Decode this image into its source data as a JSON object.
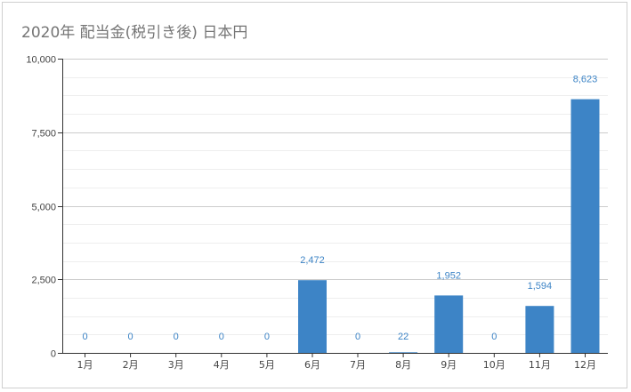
{
  "chart_data": {
    "type": "bar",
    "title": "2020年 配当金(税引き後) 日本円",
    "xlabel": "",
    "ylabel": "",
    "categories": [
      "1月",
      "2月",
      "3月",
      "4月",
      "5月",
      "6月",
      "7月",
      "8月",
      "9月",
      "10月",
      "11月",
      "12月"
    ],
    "values": [
      0,
      0,
      0,
      0,
      0,
      2472,
      0,
      22,
      1952,
      0,
      1594,
      8623
    ],
    "data_labels": [
      "0",
      "0",
      "0",
      "0",
      "0",
      "2,472",
      "0",
      "22",
      "1,952",
      "0",
      "1,594",
      "8,623"
    ],
    "ylim": [
      0,
      10000
    ],
    "yticks": [
      0,
      2500,
      5000,
      7500,
      10000
    ],
    "ytick_labels": [
      "0",
      "2,500",
      "5,000",
      "7,500",
      "10,000"
    ],
    "minor_gridlines": true,
    "grid": true,
    "legend": "none",
    "bar_color": "#3d84c6",
    "label_color": "#3d84c6"
  }
}
